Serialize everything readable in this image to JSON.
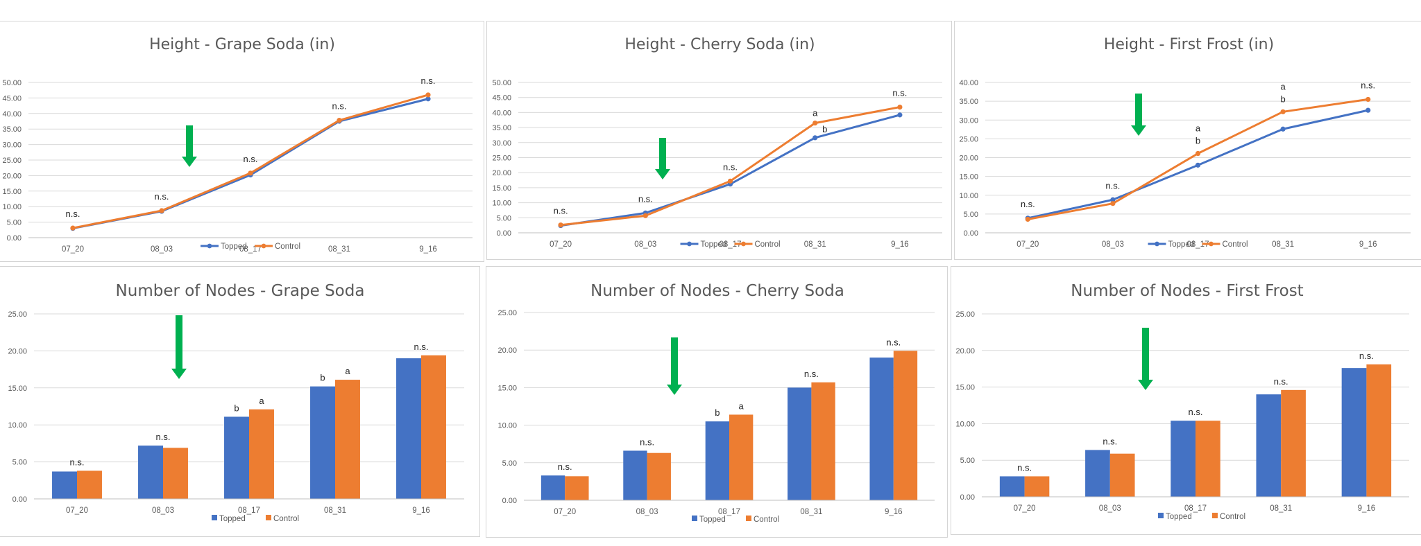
{
  "series_colors": {
    "Topped": "#4472c4",
    "Control": "#ed7d31"
  },
  "arrow_color": "#00b050",
  "grid_color": "#d9d9d9",
  "chart_data": [
    {
      "id": "height-grape",
      "type": "line",
      "title": "Height - Grape Soda (in)",
      "categories": [
        "07_20",
        "08_03",
        "08_17",
        "08_31",
        "9_16"
      ],
      "ylim": [
        0,
        50
      ],
      "yticks": [
        "0.00",
        "5.00",
        "10.00",
        "15.00",
        "20.00",
        "25.00",
        "30.00",
        "35.00",
        "40.00",
        "45.00",
        "50.00"
      ],
      "series": [
        {
          "name": "Topped",
          "values": [
            3.0,
            8.5,
            20.2,
            37.5,
            44.7
          ]
        },
        {
          "name": "Control",
          "values": [
            3.1,
            8.7,
            20.8,
            37.8,
            46.0
          ]
        }
      ],
      "annotations": [
        {
          "category": 0,
          "text": "n.s."
        },
        {
          "category": 1,
          "text": "n.s."
        },
        {
          "category": 2,
          "text": "n.s."
        },
        {
          "category": 3,
          "text": "n.s."
        },
        {
          "category": 4,
          "text": "n.s."
        }
      ],
      "arrow_after_category": 1,
      "legend": [
        "Topped",
        "Control"
      ],
      "legend_position": "bottom",
      "grid": true
    },
    {
      "id": "height-cherry",
      "type": "line",
      "title": "Height - Cherry Soda (in)",
      "categories": [
        "07_20",
        "08_03",
        "08_17",
        "08_31",
        "9_16"
      ],
      "ylim": [
        0,
        50
      ],
      "yticks": [
        "0.00",
        "5.00",
        "10.00",
        "15.00",
        "20.00",
        "25.00",
        "30.00",
        "35.00",
        "40.00",
        "45.00",
        "50.00"
      ],
      "series": [
        {
          "name": "Topped",
          "values": [
            2.4,
            6.6,
            16.2,
            31.6,
            39.2
          ]
        },
        {
          "name": "Control",
          "values": [
            2.6,
            5.7,
            17.2,
            36.5,
            41.8
          ]
        }
      ],
      "annotations": [
        {
          "category": 0,
          "text": "n.s."
        },
        {
          "category": 1,
          "text": "n.s."
        },
        {
          "category": 2,
          "text": "n.s."
        },
        {
          "category": 3,
          "text": "a",
          "series": "Control"
        },
        {
          "category": 3,
          "text": "b",
          "series": "Topped"
        },
        {
          "category": 4,
          "text": "n.s."
        }
      ],
      "arrow_after_category": 1,
      "legend": [
        "Topped",
        "Control"
      ],
      "legend_position": "bottom",
      "grid": true
    },
    {
      "id": "height-frost",
      "type": "line",
      "title": "Height - First Frost (in)",
      "categories": [
        "07_20",
        "08_03",
        "08_17",
        "08_31",
        "9_16"
      ],
      "ylim": [
        0,
        40
      ],
      "yticks": [
        "0.00",
        "5.00",
        "10.00",
        "15.00",
        "20.00",
        "25.00",
        "30.00",
        "35.00",
        "40.00"
      ],
      "series": [
        {
          "name": "Topped",
          "values": [
            3.9,
            8.8,
            18.0,
            27.6,
            32.6
          ]
        },
        {
          "name": "Control",
          "values": [
            3.6,
            7.8,
            21.1,
            32.2,
            35.5
          ]
        }
      ],
      "annotations": [
        {
          "category": 0,
          "text": "n.s."
        },
        {
          "category": 1,
          "text": "n.s."
        },
        {
          "category": 2,
          "text": "a",
          "series": "Control",
          "stacked": true
        },
        {
          "category": 2,
          "text": "b",
          "series": "Topped",
          "stacked": true
        },
        {
          "category": 3,
          "text": "a",
          "series": "Control",
          "stacked": true
        },
        {
          "category": 3,
          "text": "b",
          "series": "Topped",
          "stacked": true
        },
        {
          "category": 4,
          "text": "n.s."
        }
      ],
      "arrow_after_category": 1,
      "legend": [
        "Topped",
        "Control"
      ],
      "legend_position": "bottom",
      "grid": true
    },
    {
      "id": "nodes-grape",
      "type": "bar",
      "title": "Number of Nodes - Grape  Soda",
      "categories": [
        "07_20",
        "08_03",
        "08_17",
        "08_31",
        "9_16"
      ],
      "ylim": [
        0,
        25
      ],
      "yticks": [
        "0.00",
        "5.00",
        "10.00",
        "15.00",
        "20.00",
        "25.00"
      ],
      "series": [
        {
          "name": "Topped",
          "values": [
            3.7,
            7.2,
            11.1,
            15.2,
            19.0
          ]
        },
        {
          "name": "Control",
          "values": [
            3.8,
            6.9,
            12.1,
            16.1,
            19.4
          ]
        }
      ],
      "annotations": [
        {
          "category": 0,
          "text": "n.s."
        },
        {
          "category": 1,
          "text": "n.s."
        },
        {
          "category": 2,
          "text": "b",
          "series": "Topped"
        },
        {
          "category": 2,
          "text": "a",
          "series": "Control"
        },
        {
          "category": 3,
          "text": "b",
          "series": "Topped"
        },
        {
          "category": 3,
          "text": "a",
          "series": "Control"
        },
        {
          "category": 4,
          "text": "n.s."
        }
      ],
      "arrow_after_category": 1,
      "legend": [
        "Topped",
        "Control"
      ],
      "legend_position": "bottom",
      "grid": true
    },
    {
      "id": "nodes-cherry",
      "type": "bar",
      "title": "Number of Nodes - Cherry Soda",
      "categories": [
        "07_20",
        "08_03",
        "08_17",
        "08_31",
        "9_16"
      ],
      "ylim": [
        0,
        25
      ],
      "yticks": [
        "0.00",
        "5.00",
        "10.00",
        "15.00",
        "20.00",
        "25.00"
      ],
      "series": [
        {
          "name": "Topped",
          "values": [
            3.3,
            6.6,
            10.5,
            15.0,
            19.0
          ]
        },
        {
          "name": "Control",
          "values": [
            3.2,
            6.3,
            11.4,
            15.7,
            19.9
          ]
        }
      ],
      "annotations": [
        {
          "category": 0,
          "text": "n.s."
        },
        {
          "category": 1,
          "text": "n.s."
        },
        {
          "category": 2,
          "text": "b",
          "series": "Topped"
        },
        {
          "category": 2,
          "text": "a",
          "series": "Control"
        },
        {
          "category": 3,
          "text": "n.s."
        },
        {
          "category": 4,
          "text": "n.s."
        }
      ],
      "arrow_after_category": 1,
      "legend": [
        "Topped",
        "Control"
      ],
      "legend_position": "bottom",
      "grid": true
    },
    {
      "id": "nodes-frost",
      "type": "bar",
      "title": "Number of Nodes - First Frost",
      "categories": [
        "07_20",
        "08_03",
        "08_17",
        "08_31",
        "9_16"
      ],
      "ylim": [
        0,
        25
      ],
      "yticks": [
        "0.00",
        "5.00",
        "10.00",
        "15.00",
        "20.00",
        "25.00"
      ],
      "series": [
        {
          "name": "Topped",
          "values": [
            2.8,
            6.4,
            10.4,
            14.0,
            17.6
          ]
        },
        {
          "name": "Control",
          "values": [
            2.8,
            5.9,
            10.4,
            14.6,
            18.1
          ]
        }
      ],
      "annotations": [
        {
          "category": 0,
          "text": "n.s."
        },
        {
          "category": 1,
          "text": "n.s."
        },
        {
          "category": 2,
          "text": "n.s."
        },
        {
          "category": 3,
          "text": "n.s."
        },
        {
          "category": 4,
          "text": "n.s."
        }
      ],
      "arrow_after_category": 1,
      "legend": [
        "Topped",
        "Control"
      ],
      "legend_position": "bottom",
      "grid": true
    }
  ]
}
